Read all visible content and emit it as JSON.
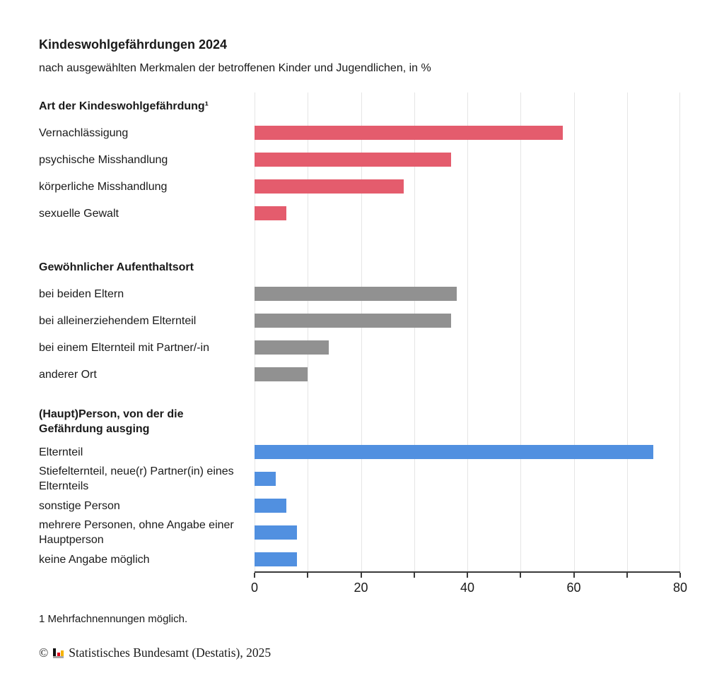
{
  "header": {
    "title": "Kindeswohlgefährdungen 2024",
    "subtitle": "nach ausgewählten Merkmalen der betroffenen Kinder und Jugendlichen, in %"
  },
  "chart_data": {
    "type": "bar",
    "orientation": "horizontal",
    "unit": "%",
    "xlim": [
      0,
      80
    ],
    "xticks": [
      0,
      20,
      40,
      60,
      80
    ],
    "gridline_step": 10,
    "grid": "vertical-lines",
    "legend": "none",
    "groups": [
      {
        "label": "Art der Kindeswohlgefährdung¹",
        "color": "#e45c6d",
        "bars": [
          {
            "label": "Vernachlässigung",
            "value": 58
          },
          {
            "label": "psychische Misshandlung",
            "value": 37
          },
          {
            "label": "körperliche Misshandlung",
            "value": 28
          },
          {
            "label": "sexuelle Gewalt",
            "value": 6
          }
        ]
      },
      {
        "label": "Gewöhnlicher Aufenthaltsort",
        "color": "#919191",
        "bars": [
          {
            "label": "bei beiden Eltern",
            "value": 38
          },
          {
            "label": "bei alleinerziehendem Elternteil",
            "value": 37
          },
          {
            "label": "bei einem Elternteil mit Partner/-in",
            "value": 14
          },
          {
            "label": "anderer Ort",
            "value": 10
          }
        ]
      },
      {
        "label": "(Haupt)Person, von der die Gefährdung ausging",
        "color": "#5190e0",
        "bars": [
          {
            "label": "Elternteil",
            "value": 75
          },
          {
            "label": "Stiefelternteil, neue(r) Partner(in) eines Elternteils",
            "value": 4
          },
          {
            "label": "sonstige Person",
            "value": 6
          },
          {
            "label": "mehrere Personen, ohne Angabe einer Hauptperson",
            "value": 8
          },
          {
            "label": "keine Angabe möglich",
            "value": 8
          }
        ]
      }
    ]
  },
  "footer": {
    "footnote": "1 Mehrfachnennungen möglich.",
    "copyright_symbol": "©",
    "copyright_text": "Statistisches Bundesamt (Destatis), 2025",
    "logo_icon": "destatis-bar-chart-logo"
  },
  "colors": {
    "bar_red": "#e45c6d",
    "bar_gray": "#919191",
    "bar_blue": "#5190e0",
    "gridline": "#e5e5e5",
    "axis": "#3a3a3a",
    "text": "#1a1a1a"
  }
}
